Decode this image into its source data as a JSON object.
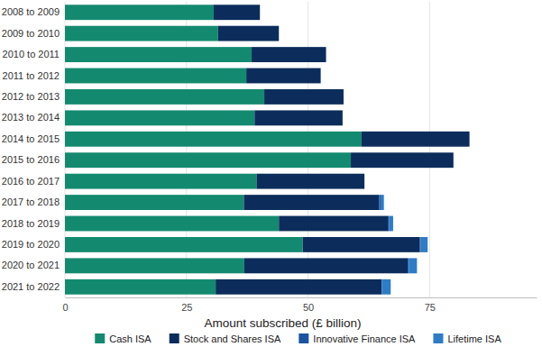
{
  "chart_data": {
    "type": "bar",
    "orientation": "horizontal",
    "stacked": true,
    "grid": true,
    "legend": "bottom",
    "x_label": "Amount subscribed (£ billion)",
    "categories": [
      "2008 to 2009",
      "2009 to 2010",
      "2010 to 2011",
      "2011 to 2012",
      "2012 to 2013",
      "2013 to 2014",
      "2014 to 2015",
      "2015 to 2016",
      "2016 to 2017",
      "2017 to 2018",
      "2018 to 2019",
      "2019 to 2020",
      "2020 to 2021",
      "2021 to 2022"
    ],
    "series": [
      {
        "name": "Cash ISA",
        "color": "#138a6f",
        "values": [
          30.6,
          31.5,
          38.4,
          37.3,
          41.0,
          39.0,
          61.0,
          58.8,
          39.4,
          36.8,
          44.0,
          48.9,
          36.9,
          31.0
        ]
      },
      {
        "name": "Stock and Shares ISA",
        "color": "#0c2d5b",
        "values": [
          9.5,
          12.5,
          15.3,
          15.3,
          16.3,
          18.1,
          22.2,
          21.1,
          22.2,
          27.8,
          22.4,
          24.1,
          33.6,
          34.1
        ]
      },
      {
        "name": "Innovative Finance ISA",
        "color": "#1b53a0",
        "values": [
          0,
          0,
          0,
          0,
          0,
          0,
          0,
          0,
          0,
          0.3,
          0.3,
          0.2,
          0.2,
          0.1
        ]
      },
      {
        "name": "Lifetime ISA",
        "color": "#2d7cc6",
        "values": [
          0,
          0,
          0,
          0,
          0,
          0,
          0,
          0,
          0,
          0.7,
          0.8,
          1.4,
          1.7,
          1.8
        ]
      }
    ],
    "xlim": [
      0,
      97
    ],
    "xticks": [
      0,
      25,
      50,
      75
    ]
  }
}
